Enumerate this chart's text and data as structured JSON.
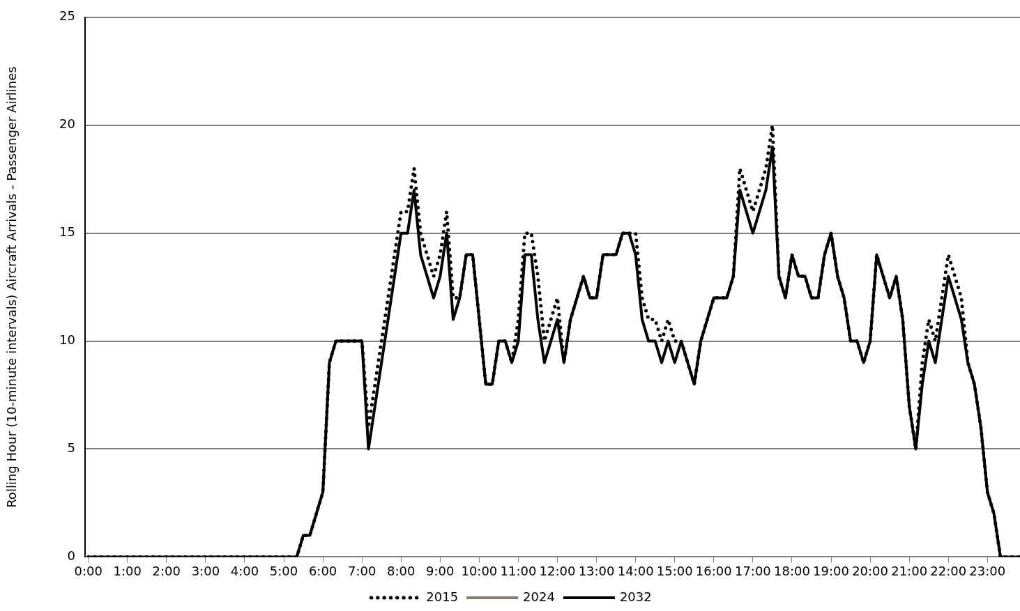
{
  "chart_data": {
    "type": "line",
    "ylabel": "Rolling Hour (10-minute intervals) Aircraft Arrivals - Passenger Airlines",
    "xlim": [
      -0.083,
      23.833
    ],
    "xticks": [
      {
        "value": 0,
        "label": "0:00"
      },
      {
        "value": 1,
        "label": "1:00"
      },
      {
        "value": 2,
        "label": "2:00"
      },
      {
        "value": 3,
        "label": "3:00"
      },
      {
        "value": 4,
        "label": "4:00"
      },
      {
        "value": 5,
        "label": "5:00"
      },
      {
        "value": 6,
        "label": "6:00"
      },
      {
        "value": 7,
        "label": "7:00"
      },
      {
        "value": 8,
        "label": "8:00"
      },
      {
        "value": 9,
        "label": "9:00"
      },
      {
        "value": 10,
        "label": "10:00"
      },
      {
        "value": 11,
        "label": "11:00"
      },
      {
        "value": 12,
        "label": "12:00"
      },
      {
        "value": 13,
        "label": "13:00"
      },
      {
        "value": 14,
        "label": "14:00"
      },
      {
        "value": 15,
        "label": "15:00"
      },
      {
        "value": 16,
        "label": "16:00"
      },
      {
        "value": 17,
        "label": "17:00"
      },
      {
        "value": 18,
        "label": "18:00"
      },
      {
        "value": 19,
        "label": "19:00"
      },
      {
        "value": 20,
        "label": "20:00"
      },
      {
        "value": 21,
        "label": "21:00"
      },
      {
        "value": 22,
        "label": "22:00"
      },
      {
        "value": 23,
        "label": "23:00"
      }
    ],
    "ylim": [
      0,
      25
    ],
    "yticks": [
      0,
      5,
      10,
      15,
      20,
      25
    ],
    "grid": "y",
    "legend": "bottom",
    "series": [
      {
        "name": "2015",
        "color": "#000000",
        "line_style": "dotted",
        "x": [
          0,
          5.333,
          5.5,
          5.667,
          5.833,
          6,
          6.167,
          6.333,
          7,
          7.167,
          7.333,
          7.5,
          7.667,
          7.833,
          8,
          8.167,
          8.333,
          8.5,
          8.667,
          8.833,
          9,
          9.167,
          9.333,
          9.5,
          9.667,
          9.833,
          10,
          10.167,
          10.333,
          10.5,
          10.667,
          10.833,
          11,
          11.167,
          11.333,
          11.5,
          11.667,
          11.833,
          12,
          12.167,
          12.333,
          12.5,
          12.667,
          12.833,
          13,
          13.167,
          13.5,
          13.667,
          13.833,
          14,
          14.167,
          14.333,
          14.5,
          14.667,
          14.833,
          15,
          15.167,
          15.333,
          15.5,
          15.667,
          15.833,
          16,
          16.333,
          16.5,
          16.667,
          16.833,
          17,
          17.167,
          17.333,
          17.5,
          17.667,
          17.833,
          18,
          18.167,
          18.333,
          18.5,
          18.667,
          18.833,
          19,
          19.167,
          19.333,
          19.5,
          19.667,
          19.833,
          20,
          20.167,
          20.333,
          20.5,
          20.667,
          20.833,
          21,
          21.167,
          21.333,
          21.5,
          21.667,
          21.833,
          22,
          22.167,
          22.333,
          22.5,
          22.667,
          22.833,
          23,
          23.167,
          23.333,
          23.833
        ],
        "values": [
          0,
          0,
          1,
          1,
          2,
          3,
          9,
          10,
          10,
          6,
          8,
          10,
          12,
          14,
          16,
          16,
          18,
          15,
          14,
          13,
          14,
          16,
          12,
          12,
          14,
          14,
          11,
          8,
          8,
          10,
          10,
          9,
          11,
          15,
          15,
          13,
          10,
          11,
          12,
          9,
          11,
          12,
          13,
          12,
          12,
          14,
          14,
          15,
          15,
          15,
          12,
          11,
          11,
          10,
          11,
          10,
          10,
          9,
          8,
          10,
          11,
          12,
          12,
          13,
          18,
          17,
          16,
          17,
          18,
          20,
          13,
          12,
          14,
          13,
          13,
          12,
          12,
          14,
          15,
          13,
          12,
          10,
          10,
          9,
          10,
          14,
          13,
          12,
          13,
          11,
          7,
          5,
          9,
          11,
          10,
          12,
          14,
          13,
          12,
          9,
          8,
          6,
          3,
          2,
          0,
          0
        ]
      },
      {
        "name": "2024",
        "color": "#857d72",
        "line_style": "solid"
      },
      {
        "name": "2032",
        "color": "#000000",
        "line_style": "solid",
        "x": [
          0,
          5.333,
          5.5,
          5.667,
          5.833,
          6,
          6.167,
          6.333,
          7,
          7.167,
          8,
          8.167,
          8.333,
          8.5,
          8.833,
          9,
          9.167,
          9.333,
          9.5,
          9.667,
          9.833,
          10,
          10.167,
          10.333,
          10.5,
          10.667,
          10.833,
          11,
          11.167,
          11.333,
          11.5,
          11.667,
          11.833,
          12,
          12.167,
          12.333,
          12.5,
          12.667,
          12.833,
          13,
          13.167,
          13.5,
          13.667,
          13.833,
          14,
          14.167,
          14.333,
          14.5,
          14.667,
          14.833,
          15,
          15.167,
          15.333,
          15.5,
          15.667,
          15.833,
          16,
          16.333,
          16.5,
          16.667,
          17,
          17.333,
          17.5,
          17.667,
          17.833,
          18,
          18.167,
          18.333,
          18.5,
          18.667,
          18.833,
          19,
          19.167,
          19.333,
          19.5,
          19.667,
          19.833,
          20,
          20.167,
          20.333,
          20.5,
          20.667,
          20.833,
          21,
          21.167,
          21.333,
          21.5,
          21.667,
          21.833,
          22,
          22.167,
          22.333,
          22.5,
          22.667,
          22.833,
          23,
          23.167,
          23.333,
          23.833
        ],
        "values": [
          0,
          0,
          1,
          1,
          2,
          3,
          9,
          10,
          10,
          5,
          15,
          15,
          17,
          14,
          12,
          13,
          15,
          11,
          12,
          14,
          14,
          11,
          8,
          8,
          10,
          10,
          9,
          10,
          14,
          14,
          11,
          9,
          10,
          11,
          9,
          11,
          12,
          13,
          12,
          12,
          14,
          14,
          15,
          15,
          14,
          11,
          10,
          10,
          9,
          10,
          9,
          10,
          9,
          8,
          10,
          11,
          12,
          12,
          13,
          17,
          15,
          17,
          19,
          13,
          12,
          14,
          13,
          13,
          12,
          12,
          14,
          15,
          13,
          12,
          10,
          10,
          9,
          10,
          14,
          13,
          12,
          13,
          11,
          7,
          5,
          8,
          10,
          9,
          11,
          13,
          12,
          11,
          9,
          8,
          6,
          3,
          2,
          0,
          0
        ]
      }
    ]
  }
}
